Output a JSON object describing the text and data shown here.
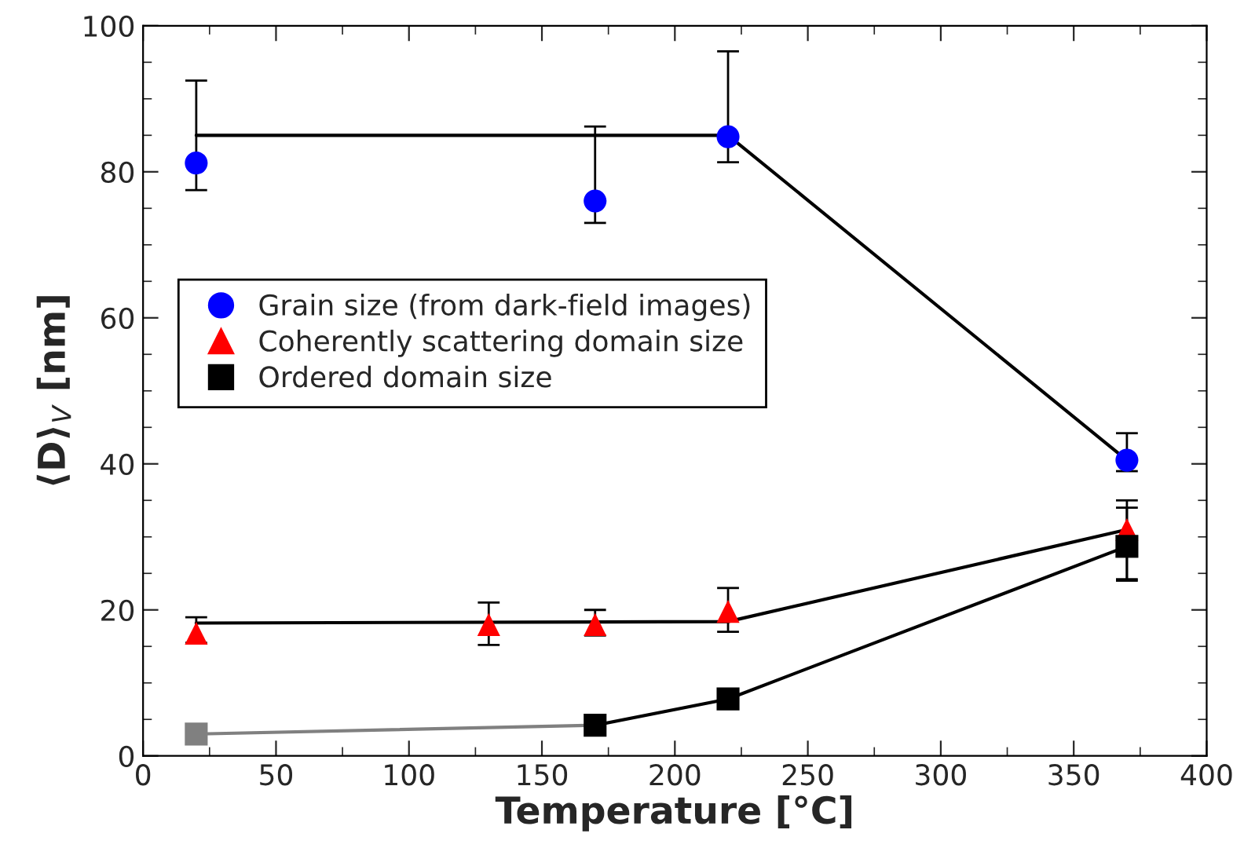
{
  "chart_data": {
    "type": "scatter",
    "xlabel": "Temperature [°C]",
    "ylabel": "⟨D⟩$_{V}$ [nm]",
    "xlim": [
      0,
      400
    ],
    "xticks": [
      0,
      50,
      100,
      150,
      200,
      250,
      300,
      350,
      400
    ],
    "ylim": [
      0,
      100
    ],
    "yticks": [
      0,
      20,
      40,
      60,
      80,
      100
    ],
    "grid": false,
    "legend": "left",
    "series": [
      {
        "type": "line",
        "color": "#000000",
        "x": [
          20,
          220,
          370
        ],
        "values": [
          85,
          85,
          40.5
        ],
        "marker": "none"
      },
      {
        "type": "line",
        "color": "#000000",
        "x": [
          20,
          220,
          370
        ],
        "values": [
          18.2,
          18.4,
          31
        ],
        "marker": "none"
      },
      {
        "type": "line",
        "color": "#808080",
        "x": [
          20,
          170
        ],
        "values": [
          3,
          4.2
        ],
        "marker": "none"
      },
      {
        "type": "line",
        "color": "#000000",
        "x": [
          170,
          220,
          370
        ],
        "values": [
          4.2,
          7.8,
          28.7
        ],
        "marker": "none"
      },
      {
        "name": "Grain size (from dark-field images)",
        "color": "#0000ff",
        "marker": "circle",
        "x": [
          20,
          170,
          220,
          370
        ],
        "values": [
          81.2,
          76,
          84.8,
          40.5
        ],
        "errors": [
          [
            77.5,
            92.5
          ],
          [
            73,
            86.2
          ],
          [
            81.3,
            96.5
          ],
          [
            39,
            44.2
          ]
        ]
      },
      {
        "name": "Coherently scattering domain size",
        "color": "#ff0000",
        "marker": "triangle",
        "x": [
          20,
          130,
          170,
          220,
          370
        ],
        "values": [
          16.8,
          18,
          18,
          19.8,
          31
        ],
        "errors": [
          [
            15.5,
            19
          ],
          [
            15.2,
            21
          ],
          [
            16.5,
            20
          ],
          [
            17,
            23
          ],
          [
            24.2,
            35
          ]
        ]
      },
      {
        "name": "Ordered domain size",
        "color": "#000000",
        "marker": "square",
        "x": [
          170,
          220,
          370
        ],
        "values": [
          4.2,
          7.8,
          28.7
        ],
        "errors": [
          null,
          null,
          [
            24,
            34
          ]
        ]
      },
      {
        "color": "#808080",
        "marker": "square",
        "x": [
          20
        ],
        "values": [
          3
        ]
      }
    ]
  }
}
